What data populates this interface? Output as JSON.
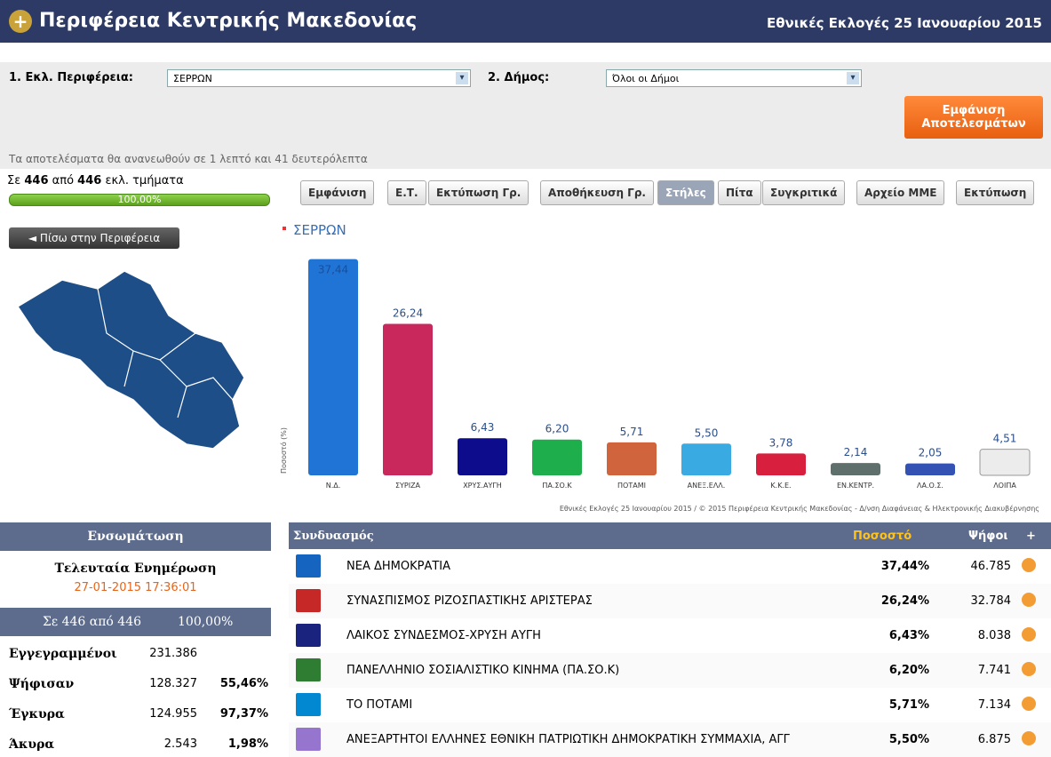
{
  "header": {
    "title": "Περιφέρεια Κεντρικής Μακεδονίας",
    "election": "Εθνικές Εκλογές 25 Ιανουαρίου 2015"
  },
  "filters": {
    "region_label": "1. Εκλ. Περιφέρεια:",
    "region_value": "ΣΕΡΡΩΝ",
    "municipality_label": "2. Δήμος:",
    "municipality_value": "Όλοι οι Δήμοι",
    "submit": "Εμφάνιση Αποτελεσμάτων",
    "refresh_note": "Τα αποτελέσματα θα ανανεωθούν σε 1 λεπτό και 41 δευτερόλεπτα"
  },
  "progress": {
    "prefix": "Σε",
    "counted": "446",
    "middle": "από",
    "total": "446",
    "suffix": "εκλ. τμήματα",
    "percent": "100,00%"
  },
  "toolbar": [
    "Εμφάνιση",
    "Ε.Τ.",
    "Εκτύπωση Γρ.",
    "Αποθήκευση Γρ.",
    "Στήλες",
    "Πίτα",
    "Συγκριτικά",
    "Αρχείο ΜΜΕ",
    "Εκτύπωση"
  ],
  "back_button": "◄ Πίσω στην Περιφέρεια",
  "chart_data": {
    "type": "bar",
    "title": "ΣΕΡΡΩΝ",
    "y_label": "Ποσοστό (%)",
    "categories": [
      "Ν.Δ.",
      "ΣΥΡΙΖΑ",
      "ΧΡΥΣ.ΑΥΓΗ",
      "ΠΑ.ΣΟ.Κ",
      "ΠΟΤΑΜΙ",
      "ΑΝΕΞ.ΕΛΛ.",
      "Κ.Κ.Ε.",
      "ΕΝ.ΚΕΝΤΡ.",
      "ΛΑ.Ο.Σ.",
      "ΛΟΙΠΑ"
    ],
    "values": [
      37.44,
      26.24,
      6.43,
      6.2,
      5.71,
      5.5,
      3.78,
      2.14,
      2.05,
      4.51
    ],
    "value_labels": [
      "37,44",
      "26,24",
      "6,43",
      "6,20",
      "5,71",
      "5,50",
      "3,78",
      "2,14",
      "2,05",
      "4,51"
    ],
    "colors": [
      "#1f74d6",
      "#c8285c",
      "#0c0c8c",
      "#1fae4c",
      "#d0643c",
      "#3aaae2",
      "#d81f3e",
      "#5f6f6c",
      "#3452b4",
      "#ececec"
    ],
    "ylim": [
      0,
      40
    ],
    "footer": "Εθνικές Εκλογές 25 Ιανουαρίου 2015 / © 2015 Περιφέρεια Κεντρικής Μακεδονίας - Δ/νση Διαφάνειας & Ηλεκτρονικής Διακυβέρνησης"
  },
  "summary": {
    "title": "Ενσωμάτωση",
    "update_label": "Τελευταία Ενημέρωση",
    "update_time": "27-01-2015 17:36:01",
    "coverage": "Σε 446 από 446",
    "coverage_percent": "100,00%",
    "rows": [
      {
        "label": "Εγγεγραμμένοι",
        "count": "231.386"
      },
      {
        "label": "Ψήφισαν",
        "count": "128.327",
        "share": "55,46%"
      },
      {
        "label": "Έγκυρα",
        "count": "124.955",
        "share": "97,37%"
      },
      {
        "label": "Άκυρα",
        "count": "2.543",
        "share": "1,98%"
      }
    ]
  },
  "results": {
    "columns": [
      "Συνδυασμός",
      "Ποσοστό",
      "Ψήφοι",
      "+"
    ],
    "rows": [
      [
        "ΝΕΑ ΔΗΜΟΚΡΑΤΙΑ",
        "37,44%",
        "46.785"
      ],
      [
        "ΣΥΝΑΣΠΙΣΜΟΣ ΡΙΖΟΣΠΑΣΤΙΚΗΣ ΑΡΙΣΤΕΡΑΣ",
        "26,24%",
        "32.784"
      ],
      [
        "ΛΑΪΚΟΣ ΣΥΝΔΕΣΜΟΣ-ΧΡΥΣΗ ΑΥΓΗ",
        "6,43%",
        "8.038"
      ],
      [
        "ΠΑΝΕΛΛΗΝΙΟ ΣΟΣΙΑΛΙΣΤΙΚΟ ΚΙΝΗΜΑ (ΠΑ.ΣΟ.Κ)",
        "6,20%",
        "7.741"
      ],
      [
        "ΤΟ ΠΟΤΑΜΙ",
        "5,71%",
        "7.134"
      ],
      [
        "ΑΝΕΞΑΡΤΗΤΟΙ ΕΛΛΗΝΕΣ ΕΘΝΙΚΗ ΠΑΤΡΙΩΤΙΚΗ ΔΗΜΟΚΡΑΤΙΚΗ ΣΥΜΜΑΧΙΑ, ΑΓΓ",
        "5,50%",
        "6.875"
      ]
    ]
  }
}
